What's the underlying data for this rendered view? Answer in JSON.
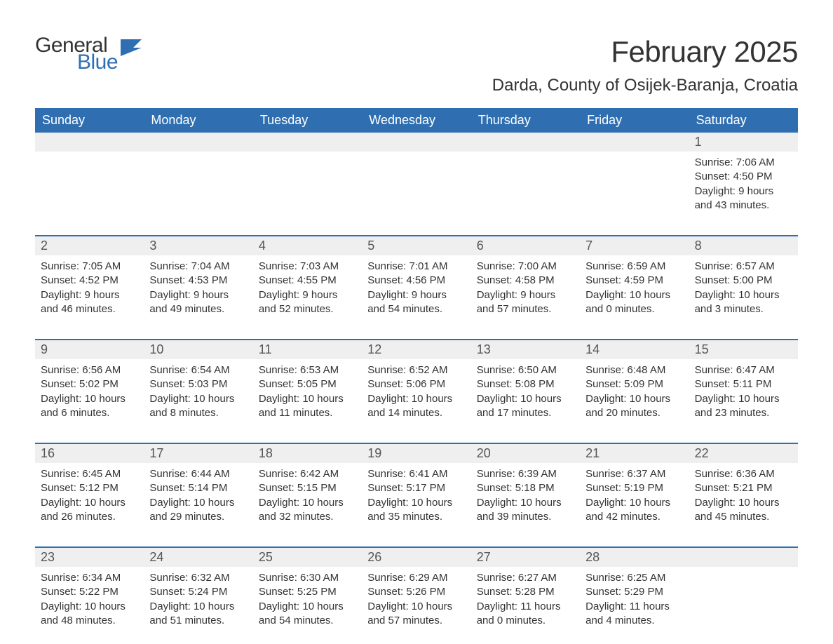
{
  "logo": {
    "word1": "General",
    "word2": "Blue",
    "icon_color": "#2f6fb1"
  },
  "title": "February 2025",
  "location": "Darda, County of Osijek-Baranja, Croatia",
  "colors": {
    "header_bg": "#2f6fb1",
    "header_text": "#ffffff",
    "daynum_bg": "#efefef",
    "row_border": "#2f6fb1",
    "body_text": "#333333",
    "daynum_text": "#555555",
    "background": "#ffffff"
  },
  "typography": {
    "title_fontsize": 42,
    "location_fontsize": 24,
    "weekday_fontsize": 18,
    "daynum_fontsize": 18,
    "cell_fontsize": 15,
    "logo_fontsize": 30
  },
  "weekdays": [
    "Sunday",
    "Monday",
    "Tuesday",
    "Wednesday",
    "Thursday",
    "Friday",
    "Saturday"
  ],
  "weeks": [
    [
      null,
      null,
      null,
      null,
      null,
      null,
      {
        "n": "1",
        "sunrise": "7:06 AM",
        "sunset": "4:50 PM",
        "daylight": "9 hours and 43 minutes."
      }
    ],
    [
      {
        "n": "2",
        "sunrise": "7:05 AM",
        "sunset": "4:52 PM",
        "daylight": "9 hours and 46 minutes."
      },
      {
        "n": "3",
        "sunrise": "7:04 AM",
        "sunset": "4:53 PM",
        "daylight": "9 hours and 49 minutes."
      },
      {
        "n": "4",
        "sunrise": "7:03 AM",
        "sunset": "4:55 PM",
        "daylight": "9 hours and 52 minutes."
      },
      {
        "n": "5",
        "sunrise": "7:01 AM",
        "sunset": "4:56 PM",
        "daylight": "9 hours and 54 minutes."
      },
      {
        "n": "6",
        "sunrise": "7:00 AM",
        "sunset": "4:58 PM",
        "daylight": "9 hours and 57 minutes."
      },
      {
        "n": "7",
        "sunrise": "6:59 AM",
        "sunset": "4:59 PM",
        "daylight": "10 hours and 0 minutes."
      },
      {
        "n": "8",
        "sunrise": "6:57 AM",
        "sunset": "5:00 PM",
        "daylight": "10 hours and 3 minutes."
      }
    ],
    [
      {
        "n": "9",
        "sunrise": "6:56 AM",
        "sunset": "5:02 PM",
        "daylight": "10 hours and 6 minutes."
      },
      {
        "n": "10",
        "sunrise": "6:54 AM",
        "sunset": "5:03 PM",
        "daylight": "10 hours and 8 minutes."
      },
      {
        "n": "11",
        "sunrise": "6:53 AM",
        "sunset": "5:05 PM",
        "daylight": "10 hours and 11 minutes."
      },
      {
        "n": "12",
        "sunrise": "6:52 AM",
        "sunset": "5:06 PM",
        "daylight": "10 hours and 14 minutes."
      },
      {
        "n": "13",
        "sunrise": "6:50 AM",
        "sunset": "5:08 PM",
        "daylight": "10 hours and 17 minutes."
      },
      {
        "n": "14",
        "sunrise": "6:48 AM",
        "sunset": "5:09 PM",
        "daylight": "10 hours and 20 minutes."
      },
      {
        "n": "15",
        "sunrise": "6:47 AM",
        "sunset": "5:11 PM",
        "daylight": "10 hours and 23 minutes."
      }
    ],
    [
      {
        "n": "16",
        "sunrise": "6:45 AM",
        "sunset": "5:12 PM",
        "daylight": "10 hours and 26 minutes."
      },
      {
        "n": "17",
        "sunrise": "6:44 AM",
        "sunset": "5:14 PM",
        "daylight": "10 hours and 29 minutes."
      },
      {
        "n": "18",
        "sunrise": "6:42 AM",
        "sunset": "5:15 PM",
        "daylight": "10 hours and 32 minutes."
      },
      {
        "n": "19",
        "sunrise": "6:41 AM",
        "sunset": "5:17 PM",
        "daylight": "10 hours and 35 minutes."
      },
      {
        "n": "20",
        "sunrise": "6:39 AM",
        "sunset": "5:18 PM",
        "daylight": "10 hours and 39 minutes."
      },
      {
        "n": "21",
        "sunrise": "6:37 AM",
        "sunset": "5:19 PM",
        "daylight": "10 hours and 42 minutes."
      },
      {
        "n": "22",
        "sunrise": "6:36 AM",
        "sunset": "5:21 PM",
        "daylight": "10 hours and 45 minutes."
      }
    ],
    [
      {
        "n": "23",
        "sunrise": "6:34 AM",
        "sunset": "5:22 PM",
        "daylight": "10 hours and 48 minutes."
      },
      {
        "n": "24",
        "sunrise": "6:32 AM",
        "sunset": "5:24 PM",
        "daylight": "10 hours and 51 minutes."
      },
      {
        "n": "25",
        "sunrise": "6:30 AM",
        "sunset": "5:25 PM",
        "daylight": "10 hours and 54 minutes."
      },
      {
        "n": "26",
        "sunrise": "6:29 AM",
        "sunset": "5:26 PM",
        "daylight": "10 hours and 57 minutes."
      },
      {
        "n": "27",
        "sunrise": "6:27 AM",
        "sunset": "5:28 PM",
        "daylight": "11 hours and 0 minutes."
      },
      {
        "n": "28",
        "sunrise": "6:25 AM",
        "sunset": "5:29 PM",
        "daylight": "11 hours and 4 minutes."
      },
      null
    ]
  ],
  "labels": {
    "sunrise_prefix": "Sunrise: ",
    "sunset_prefix": "Sunset: ",
    "daylight_prefix": "Daylight: "
  }
}
